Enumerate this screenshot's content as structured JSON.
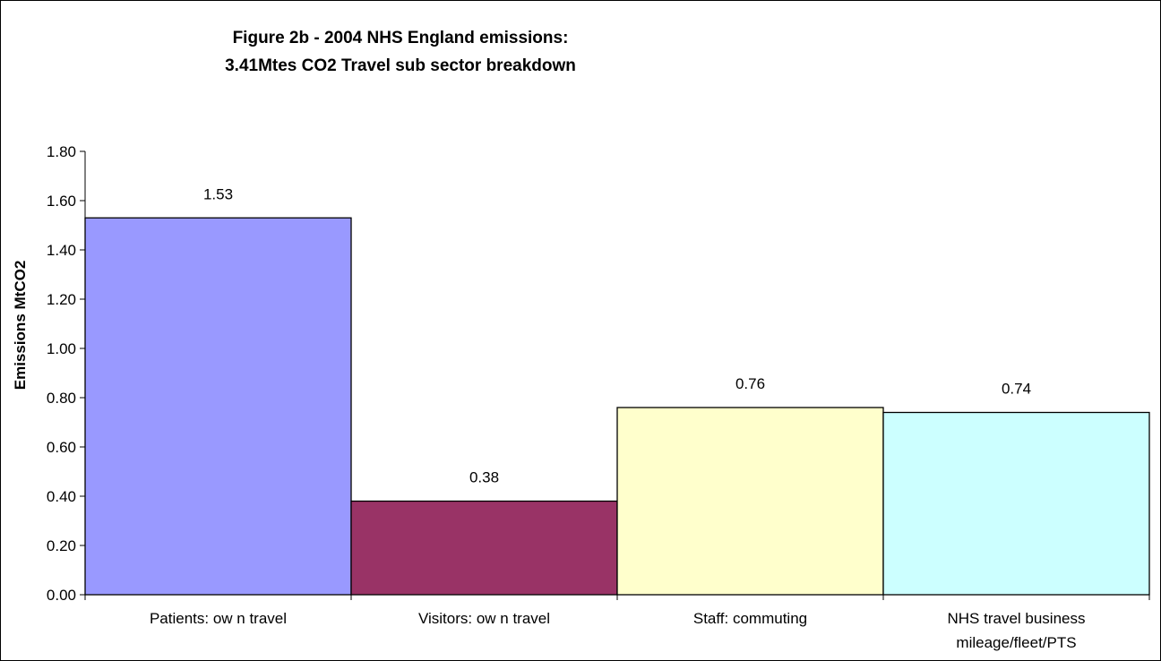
{
  "chart_data": {
    "type": "bar",
    "title": [
      "Figure 2b - 2004 NHS England emissions:",
      "3.41Mtes CO2 Travel sub sector breakdown"
    ],
    "xlabel": "",
    "ylabel": "Emissions MtCO2",
    "ylim": [
      0,
      1.8
    ],
    "ytick_step": 0.2,
    "ytick_labels": [
      "0.00",
      "0.20",
      "0.40",
      "0.60",
      "0.80",
      "1.00",
      "1.20",
      "1.40",
      "1.60",
      "1.80"
    ],
    "grid": false,
    "legend": "none",
    "categories": [
      [
        "Patients: ow n travel"
      ],
      [
        "Visitors: ow n travel"
      ],
      [
        "Staff: commuting"
      ],
      [
        "NHS travel business",
        "mileage/fleet/PTS"
      ]
    ],
    "values": [
      1.53,
      0.38,
      0.76,
      0.74
    ],
    "data_labels": [
      "1.53",
      "0.38",
      "0.76",
      "0.74"
    ],
    "colors": [
      "#9999ff",
      "#993366",
      "#ffffcc",
      "#ccffff"
    ]
  }
}
